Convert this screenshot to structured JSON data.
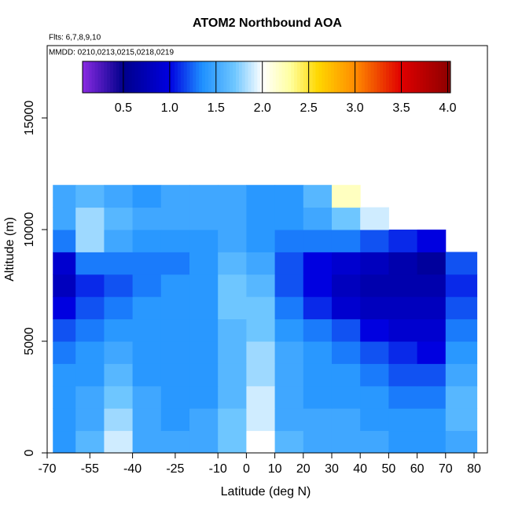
{
  "chart_data": {
    "type": "heatmap",
    "title": "ATOM2 Northbound AOA",
    "notes": [
      "Flts: 6,7,8,9,10",
      "MMDD: 0210,0213,0215,0218,0219"
    ],
    "xlabel": "Latitude (deg N)",
    "ylabel": "Altitude (m)",
    "xlim": [
      -70,
      84.7
    ],
    "ylim": [
      0,
      18240
    ],
    "xticks": [
      -70,
      -55,
      -40,
      -25,
      -10,
      0,
      10,
      20,
      30,
      40,
      50,
      60,
      70,
      80
    ],
    "yticks": [
      0,
      5000,
      10000,
      15000
    ],
    "x": [
      -68,
      -60,
      -50,
      -40,
      -30,
      -20,
      -10,
      0,
      10,
      20,
      30,
      40,
      50,
      60,
      70,
      81
    ],
    "y": [
      0,
      1000,
      2000,
      3000,
      4000,
      5000,
      6000,
      7000,
      8000,
      9000,
      10000,
      11000,
      12000
    ],
    "z": [
      [
        1.4,
        1.6,
        1.9,
        1.5,
        1.5,
        1.5,
        1.7,
        2.0,
        1.6,
        1.5,
        1.5,
        1.5,
        1.4,
        1.4,
        1.5
      ],
      [
        1.4,
        1.5,
        1.8,
        1.5,
        1.4,
        1.5,
        1.7,
        1.9,
        1.5,
        1.5,
        1.5,
        1.4,
        1.4,
        1.4,
        1.6
      ],
      [
        1.4,
        1.5,
        1.7,
        1.5,
        1.4,
        1.4,
        1.6,
        1.9,
        1.5,
        1.4,
        1.4,
        1.4,
        1.3,
        1.3,
        1.6
      ],
      [
        1.4,
        1.4,
        1.6,
        1.4,
        1.4,
        1.4,
        1.6,
        1.8,
        1.5,
        1.4,
        1.4,
        1.3,
        1.2,
        1.2,
        1.5
      ],
      [
        1.3,
        1.4,
        1.5,
        1.4,
        1.4,
        1.4,
        1.6,
        1.8,
        1.5,
        1.4,
        1.3,
        1.2,
        1.1,
        1.0,
        1.4
      ],
      [
        1.2,
        1.3,
        1.4,
        1.4,
        1.4,
        1.4,
        1.6,
        1.7,
        1.4,
        1.3,
        1.2,
        1.0,
        0.9,
        0.9,
        1.3
      ],
      [
        1.0,
        1.2,
        1.3,
        1.4,
        1.4,
        1.4,
        1.7,
        1.7,
        1.3,
        1.1,
        0.9,
        0.8,
        0.8,
        0.8,
        1.2
      ],
      [
        0.8,
        1.1,
        1.2,
        1.3,
        1.4,
        1.4,
        1.7,
        1.6,
        1.2,
        1.0,
        0.8,
        0.7,
        0.7,
        0.7,
        1.1
      ],
      [
        0.9,
        1.3,
        1.3,
        1.3,
        1.3,
        1.4,
        1.6,
        1.5,
        1.2,
        1.0,
        0.9,
        0.8,
        0.7,
        0.6,
        1.2
      ],
      [
        1.3,
        1.8,
        1.5,
        1.4,
        1.4,
        1.4,
        1.5,
        1.4,
        1.3,
        1.3,
        1.3,
        1.2,
        1.1,
        1.0,
        null
      ],
      [
        1.5,
        1.8,
        1.6,
        1.5,
        1.5,
        1.5,
        1.5,
        1.4,
        1.4,
        1.5,
        1.7,
        1.9,
        null,
        null,
        null
      ],
      [
        1.5,
        1.6,
        1.5,
        1.4,
        1.5,
        1.5,
        1.5,
        1.4,
        1.4,
        1.6,
        2.2,
        null,
        null,
        null,
        null
      ]
    ],
    "clim": [
      0.06,
      4.03
    ],
    "cticks": [
      {
        "value": 0.5,
        "label": "0.5"
      },
      {
        "value": 1.0,
        "label": "1.0"
      },
      {
        "value": 1.5,
        "label": "1.5"
      },
      {
        "value": 2.0,
        "label": "2.0"
      },
      {
        "value": 2.5,
        "label": "2.5"
      },
      {
        "value": 3.0,
        "label": "3.0"
      },
      {
        "value": 3.5,
        "label": "3.5"
      },
      {
        "value": 4.0,
        "label": "4.0"
      }
    ],
    "colorscale": [
      [
        0.06,
        "#8a2be2"
      ],
      [
        0.5,
        "#00008b"
      ],
      [
        1.0,
        "#0000e0"
      ],
      [
        1.35,
        "#1e90ff"
      ],
      [
        1.7,
        "#6ec6ff"
      ],
      [
        2.0,
        "#ffffff"
      ],
      [
        2.3,
        "#ffffa0"
      ],
      [
        2.6,
        "#ffd700"
      ],
      [
        3.0,
        "#ff8c00"
      ],
      [
        3.5,
        "#e00000"
      ],
      [
        4.03,
        "#8b0000"
      ]
    ]
  }
}
